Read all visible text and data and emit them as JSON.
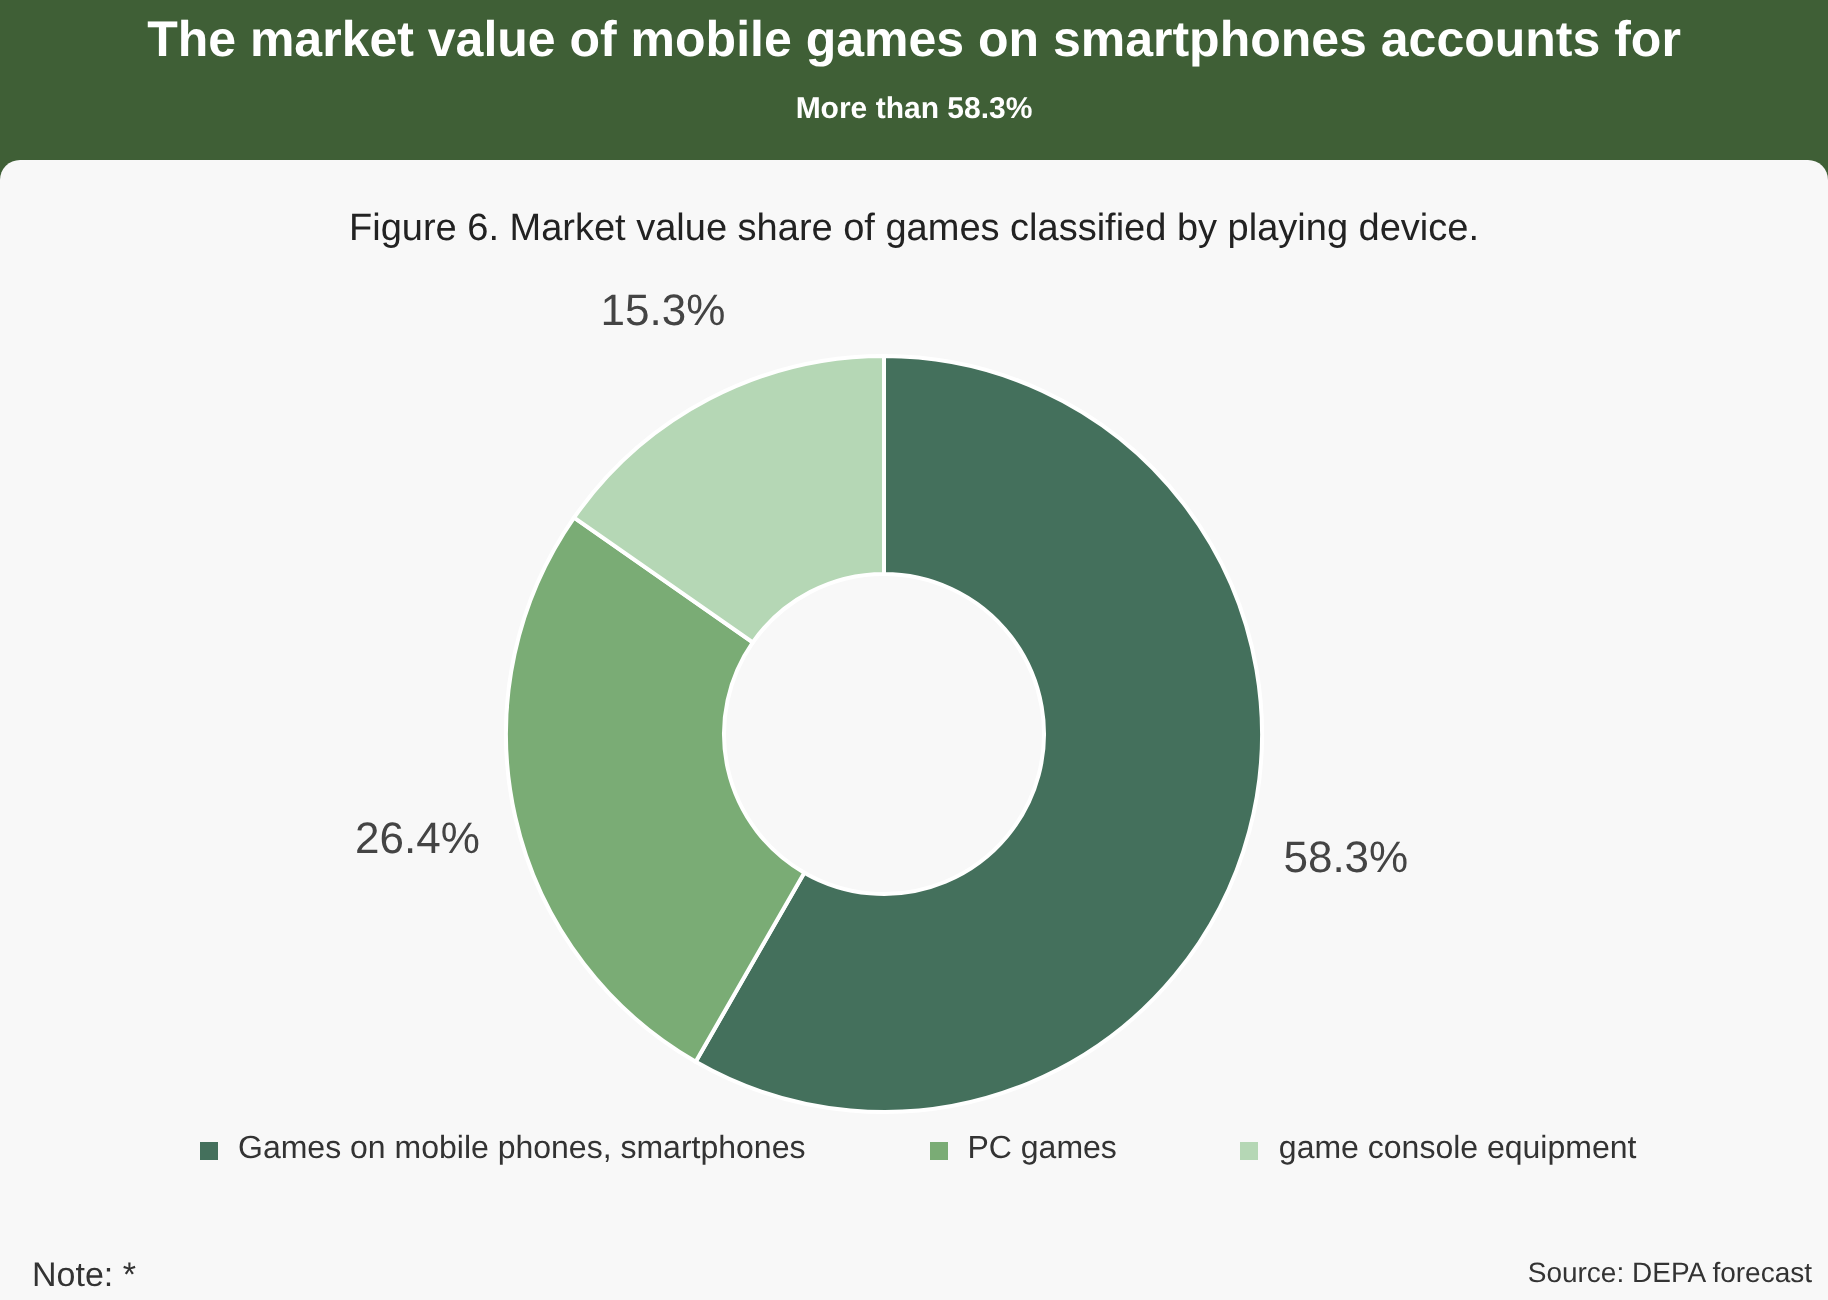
{
  "chart_data": {
    "type": "donut",
    "title": "The market value of mobile games on smartphones accounts for",
    "subtitle": "More than 58.3%",
    "annotations": [
      "Figure 6. Market value share of games classified by playing device.",
      "Note: *",
      "Source: DEPA forecast"
    ],
    "categories": [
      "Games on mobile phones, smartphones",
      "PC games",
      "game console equipment"
    ],
    "values": [
      58.3,
      26.4,
      15.3
    ],
    "colors": [
      "#44705c",
      "#7aac75",
      "#b5d7b5"
    ],
    "value_labels": [
      "58.3%",
      "26.4%",
      "15.3%"
    ],
    "legend": "bottom"
  }
}
